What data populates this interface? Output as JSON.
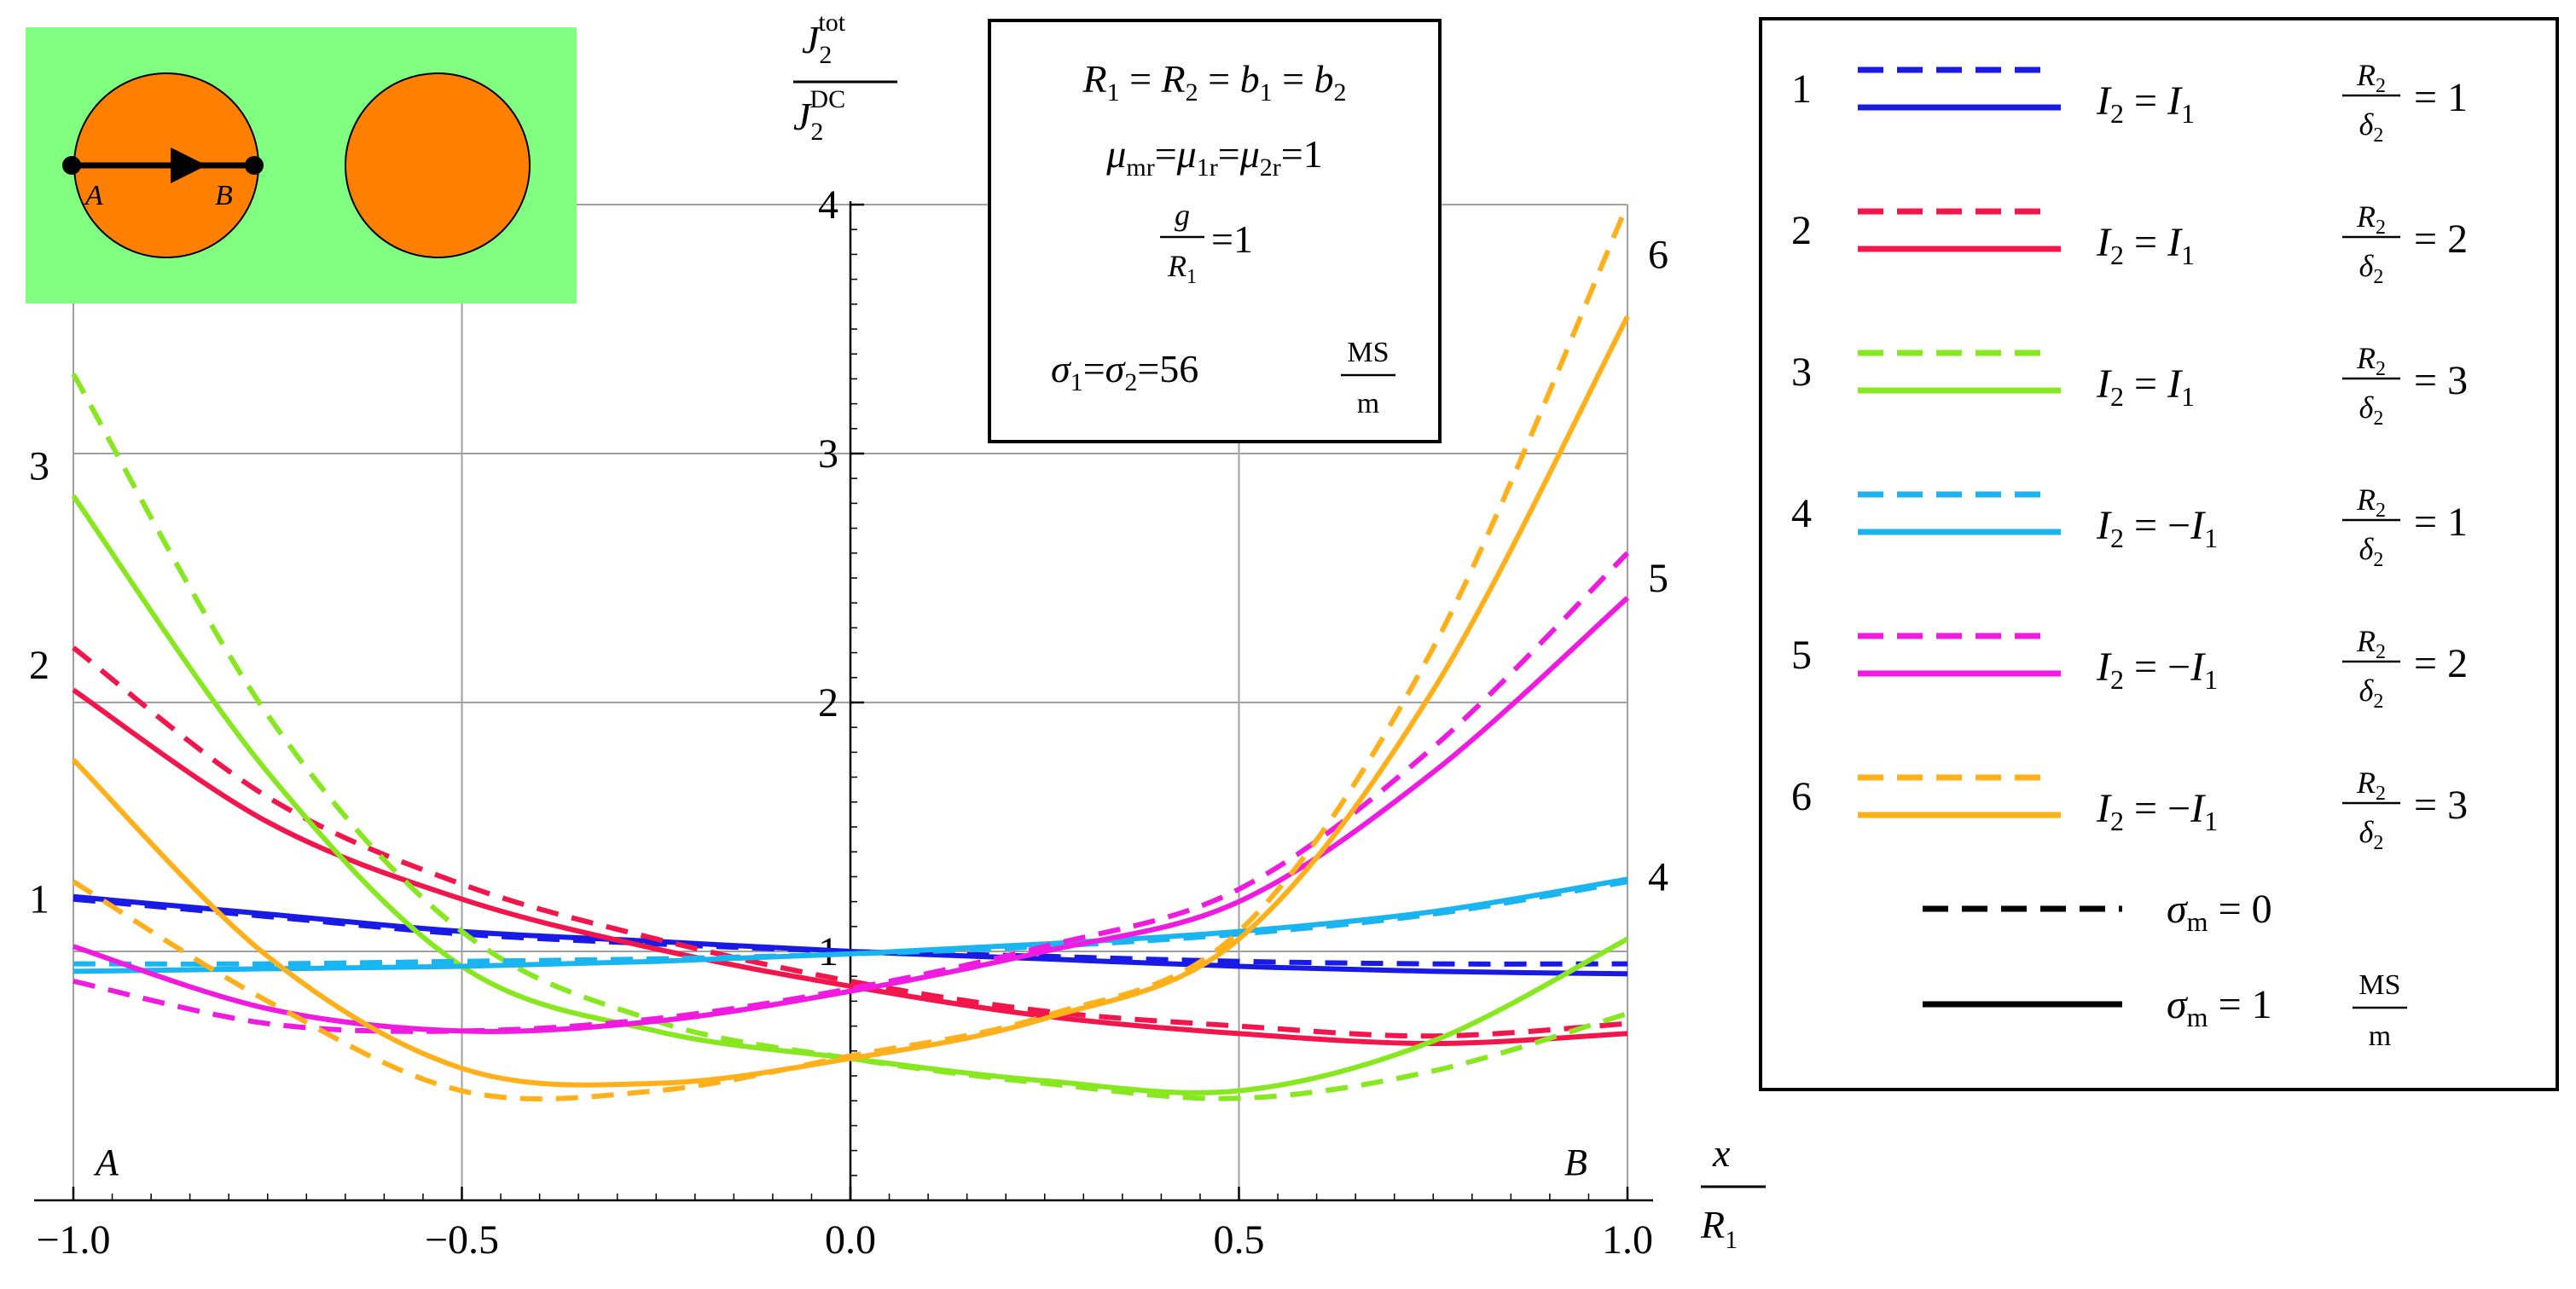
{
  "chart_data": {
    "type": "line",
    "title": "",
    "xlabel": {
      "num": "x",
      "den": "R",
      "den_sub": "1"
    },
    "ylabel": {
      "num": "J",
      "num_sub": "2",
      "num_sup": "tot",
      "den": "J",
      "den_sub": "2",
      "den_sup": "DC"
    },
    "xlim": [
      -1.0,
      1.0
    ],
    "ylim": [
      0,
      4
    ],
    "grid": true,
    "x_ticks": [
      {
        "v": -1.0,
        "label": "−1.0"
      },
      {
        "v": -0.5,
        "label": "−0.5"
      },
      {
        "v": 0.0,
        "label": "0.0"
      },
      {
        "v": 0.5,
        "label": "0.5"
      },
      {
        "v": 1.0,
        "label": "1.0"
      }
    ],
    "y_ticks": [
      {
        "v": 1,
        "label": "1"
      },
      {
        "v": 2,
        "label": "2"
      },
      {
        "v": 3,
        "label": "3"
      },
      {
        "v": 4,
        "label": "4"
      }
    ],
    "endpoint_labels": {
      "left": "A",
      "right": "B"
    },
    "x": [
      -1.0,
      -0.75,
      -0.5,
      -0.25,
      0.0,
      0.25,
      0.5,
      0.75,
      1.0
    ],
    "series": [
      {
        "id": 1,
        "name": "1, σm = 0",
        "style": "dashed",
        "color": "#1a1ae6",
        "values": [
          1.21,
          1.14,
          1.07,
          1.03,
          1.0,
          0.98,
          0.96,
          0.95,
          0.95
        ]
      },
      {
        "id": 1,
        "name": "1, σm = 1 MS/m",
        "style": "solid",
        "color": "#1a1ae6",
        "values": [
          1.22,
          1.15,
          1.08,
          1.04,
          1.0,
          0.97,
          0.94,
          0.92,
          0.91
        ]
      },
      {
        "id": 2,
        "name": "2, σm = 0",
        "style": "dashed",
        "color": "#f2164d",
        "values": [
          2.22,
          1.62,
          1.27,
          1.05,
          0.88,
          0.76,
          0.7,
          0.66,
          0.71
        ]
      },
      {
        "id": 2,
        "name": "2, σm = 1 MS/m",
        "style": "solid",
        "color": "#f2164d",
        "values": [
          2.05,
          1.52,
          1.21,
          1.01,
          0.86,
          0.74,
          0.67,
          0.63,
          0.67
        ]
      },
      {
        "id": 3,
        "name": "3, σm = 0",
        "style": "dashed",
        "color": "#88e820",
        "values": [
          3.32,
          1.95,
          1.08,
          0.72,
          0.57,
          0.47,
          0.41,
          0.52,
          0.75
        ]
      },
      {
        "id": 3,
        "name": "3, σm = 1 MS/m",
        "style": "solid",
        "color": "#88e820",
        "values": [
          2.83,
          1.72,
          0.94,
          0.68,
          0.57,
          0.48,
          0.44,
          0.64,
          1.05
        ]
      },
      {
        "id": 4,
        "name": "4, σm = 0",
        "style": "dashed",
        "color": "#1ab4f0",
        "values": [
          0.95,
          0.95,
          0.96,
          0.97,
          0.99,
          1.02,
          1.07,
          1.15,
          1.28
        ]
      },
      {
        "id": 4,
        "name": "4, σm = 1 MS/m",
        "style": "solid",
        "color": "#1ab4f0",
        "values": [
          0.92,
          0.93,
          0.94,
          0.96,
          0.99,
          1.03,
          1.08,
          1.16,
          1.29
        ]
      },
      {
        "id": 5,
        "name": "5, σm = 0",
        "style": "dashed",
        "color": "#f01ae0",
        "values": [
          0.88,
          0.71,
          0.68,
          0.73,
          0.85,
          1.02,
          1.25,
          1.82,
          2.6
        ]
      },
      {
        "id": 5,
        "name": "5, σm = 1 MS/m",
        "style": "solid",
        "color": "#f01ae0",
        "values": [
          1.02,
          0.77,
          0.68,
          0.72,
          0.84,
          1.0,
          1.2,
          1.72,
          2.42
        ]
      },
      {
        "id": 6,
        "name": "6, σm = 0",
        "style": "dashed",
        "color": "#ffb01a",
        "values": [
          1.28,
          0.8,
          0.44,
          0.44,
          0.58,
          0.74,
          1.08,
          2.22,
          4.0
        ]
      },
      {
        "id": 6,
        "name": "6, σm = 1 MS/m",
        "style": "solid",
        "color": "#ffb01a",
        "values": [
          1.77,
          0.98,
          0.53,
          0.47,
          0.57,
          0.73,
          1.05,
          2.05,
          3.55
        ]
      }
    ],
    "curve_end_labels": {
      "left": [
        {
          "id": 1,
          "text": "1",
          "at": 1.21
        },
        {
          "id": 2,
          "text": "2",
          "at": 2.15
        },
        {
          "id": 3,
          "text": "3",
          "at": 2.95
        }
      ],
      "right": [
        {
          "id": 4,
          "text": "4",
          "at": 1.3
        },
        {
          "id": 5,
          "text": "5",
          "at": 2.5
        },
        {
          "id": 6,
          "text": "6",
          "at": 3.8
        }
      ]
    },
    "params_box": {
      "line1": "R1 = R2 = b1 = b2",
      "line2": "μmr=μ1r=μ2r=1",
      "line3": "g/R1=1",
      "line4": "σ1=σ2=56 MS/m",
      "unit_num": "MS",
      "unit_den": "m"
    },
    "legend": {
      "placement": "right",
      "rows": [
        {
          "id": "1",
          "current": "I2 = I1",
          "ratio": "R2/δ2 = 1",
          "sign": "",
          "value": "1",
          "color": "#1a1ae6"
        },
        {
          "id": "2",
          "current": "I2 = I1",
          "ratio": "R2/δ2 = 2",
          "sign": "",
          "value": "2",
          "color": "#f2164d"
        },
        {
          "id": "3",
          "current": "I2 = I1",
          "ratio": "R2/δ2 = 3",
          "sign": "",
          "value": "3",
          "color": "#88e820"
        },
        {
          "id": "4",
          "current": "I2 = −I1",
          "ratio": "R2/δ2 = 1",
          "sign": "−",
          "value": "1",
          "color": "#1ab4f0"
        },
        {
          "id": "5",
          "current": "I2 = −I1",
          "ratio": "R2/δ2 = 2",
          "sign": "−",
          "value": "2",
          "color": "#f01ae0"
        },
        {
          "id": "6",
          "current": "I2 = −I1",
          "ratio": "R2/δ2 = 3",
          "sign": "−",
          "value": "3",
          "color": "#ffb01a"
        }
      ],
      "style_rows": [
        {
          "style": "dashed",
          "label": "σm = 0",
          "value": "0"
        },
        {
          "style": "solid",
          "label": "σm = 1 MS/m",
          "value": "1",
          "unit_num": "MS",
          "unit_den": "m"
        }
      ]
    },
    "inset": {
      "background": "#80ff80",
      "conductor_color": "#ff8000",
      "point_a": "A",
      "point_b": "B"
    }
  }
}
